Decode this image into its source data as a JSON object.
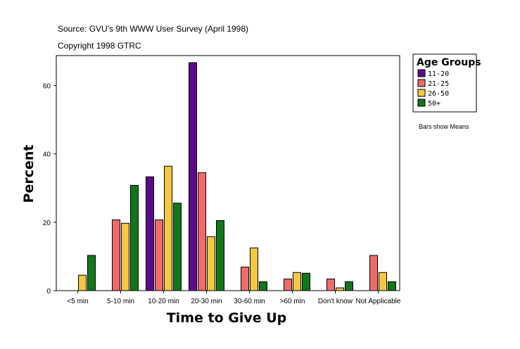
{
  "source_line": "Source: GVU's 9th WWW User Survey (April 1998)",
  "copyright_line": "Copyright 1998 GTRC",
  "note": "Bars show Means",
  "legend_title": "Age Groups",
  "chart_data": {
    "type": "bar",
    "xlabel": "Time to Give Up",
    "ylabel": "Percent",
    "ylim": [
      0,
      70
    ],
    "yticks": [
      0,
      20,
      40,
      60
    ],
    "categories": [
      "<5 min",
      "5-10 min",
      "10-20 min",
      "20-30 min",
      "30-60 min",
      ">60 min",
      "Don't know",
      "Not Applicable"
    ],
    "series": [
      {
        "name": "11-20",
        "color": "#5c0a8c",
        "values": [
          null,
          null,
          33.3,
          66.7,
          null,
          null,
          null,
          null
        ]
      },
      {
        "name": "21-25",
        "color": "#ef6b6b",
        "values": [
          null,
          20.7,
          20.7,
          34.5,
          6.9,
          3.4,
          3.4,
          10.3
        ]
      },
      {
        "name": "26-50",
        "color": "#f5c842",
        "values": [
          4.5,
          19.7,
          36.4,
          15.8,
          12.5,
          5.3,
          0.8,
          5.3
        ]
      },
      {
        "name": "50+",
        "color": "#11771a",
        "values": [
          10.3,
          30.8,
          25.6,
          20.5,
          2.6,
          5.1,
          2.6,
          2.6
        ]
      }
    ]
  }
}
